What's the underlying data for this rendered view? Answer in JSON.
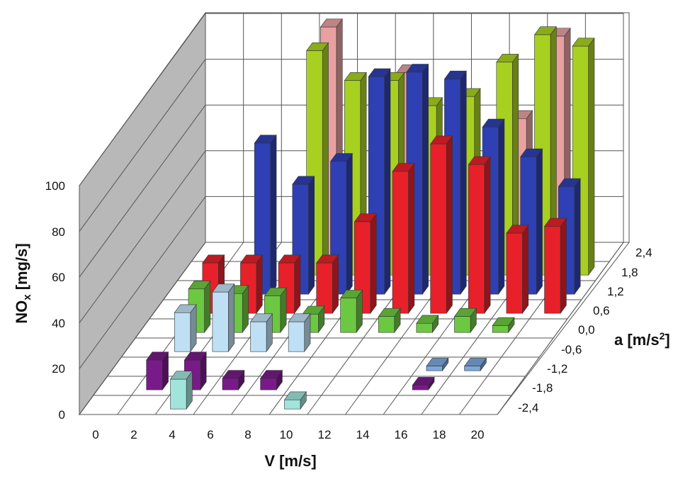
{
  "chart_data": {
    "type": "bar",
    "subtype": "3d-bar",
    "title": "",
    "xlabel": "V [m/s]",
    "ylabel_main": "NO",
    "ylabel_sub": "x",
    "ylabel_unit": " [mg/s]",
    "zlabel_main": "a [m/s",
    "zlabel_sup": "2",
    "zlabel_end": "]",
    "x_ticks": [
      "0",
      "2",
      "4",
      "6",
      "8",
      "10",
      "12",
      "14",
      "16",
      "18",
      "20"
    ],
    "y_ticks": [
      "0",
      "20",
      "40",
      "60",
      "80",
      "100"
    ],
    "z_ticks": [
      "-2,4",
      "-1,8",
      "-1,2",
      "-0,6",
      "0,0",
      "0,6",
      "1,2",
      "1,8",
      "2,4"
    ],
    "ylim": [
      0,
      100
    ],
    "grid": true,
    "series": [
      {
        "name": "2,4",
        "color": "#e8a0a0",
        "values": [
          null,
          null,
          null,
          100,
          null,
          80,
          null,
          null,
          60,
          96,
          null
        ]
      },
      {
        "name": "1,8",
        "color": "#a8d020",
        "values": [
          null,
          null,
          null,
          98,
          85,
          85,
          74,
          78,
          93,
          105,
          100
        ]
      },
      {
        "name": "1,2",
        "color": "#2e40b4",
        "values": [
          null,
          null,
          66,
          48,
          58,
          95,
          97,
          94,
          73,
          60,
          47
        ]
      },
      {
        "name": "0,6",
        "color": "#e8202a",
        "values": [
          null,
          22,
          22,
          22,
          22,
          40,
          62,
          74,
          65,
          35,
          38
        ]
      },
      {
        "name": "0,0",
        "color": "#6cc840",
        "values": [
          null,
          19,
          17,
          16,
          8,
          15,
          7,
          4,
          7,
          3,
          null
        ]
      },
      {
        "name": "-0,6",
        "color": "#bfe0f4",
        "values": [
          null,
          17,
          26,
          13,
          13,
          null,
          null,
          null,
          null,
          null,
          null
        ]
      },
      {
        "name": "-1,2",
        "color": "#7aa8dc",
        "values": [
          null,
          null,
          null,
          null,
          null,
          null,
          null,
          null,
          2,
          2,
          null
        ]
      },
      {
        "name": "-1,8",
        "color": "#7a1a8a",
        "values": [
          null,
          13,
          13,
          5,
          5,
          null,
          null,
          null,
          2,
          null,
          null
        ]
      },
      {
        "name": "-2,4",
        "color": "#a0e4dc",
        "values": [
          null,
          null,
          13,
          null,
          null,
          4,
          null,
          null,
          null,
          null,
          null
        ]
      }
    ]
  }
}
